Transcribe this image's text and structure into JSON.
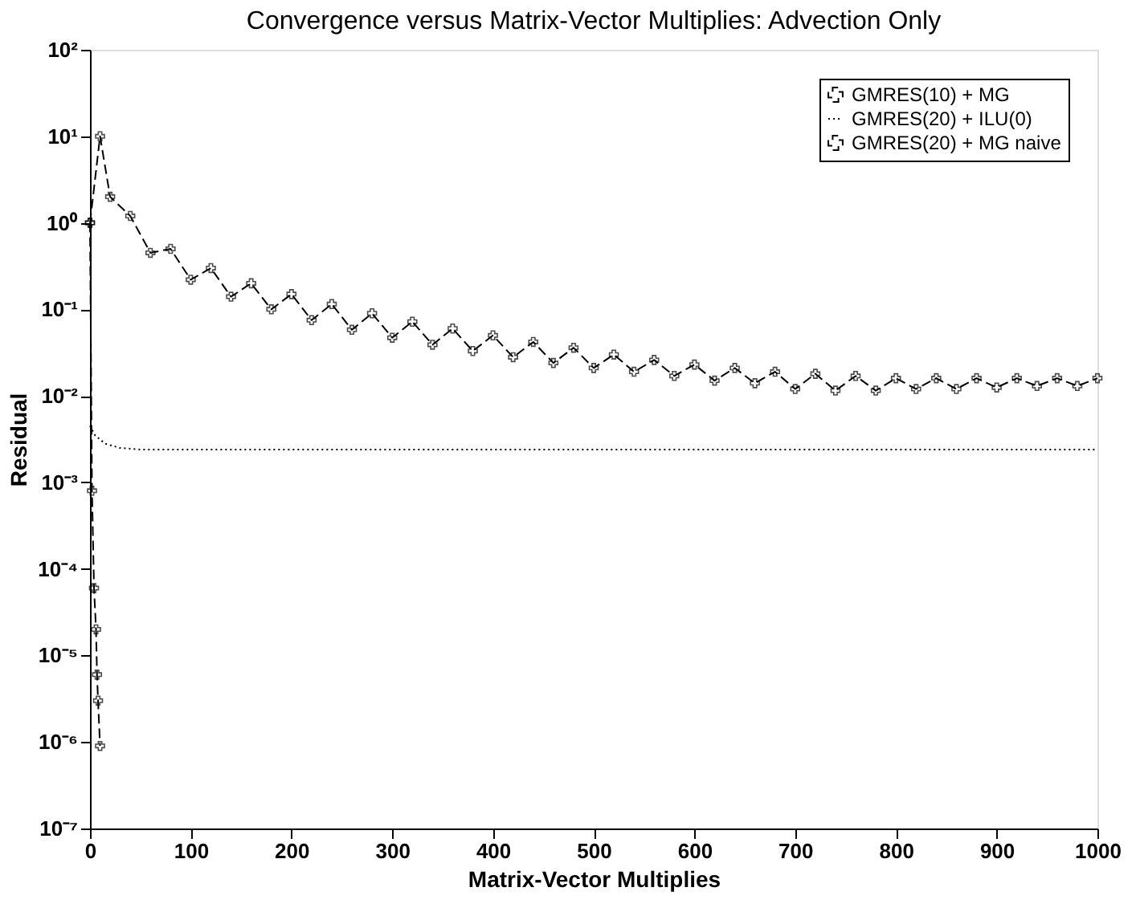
{
  "chart_data": {
    "type": "line",
    "title": "Convergence versus Matrix-Vector Multiplies: Advection Only",
    "xlabel": "Matrix-Vector Multiplies",
    "ylabel": "Residual",
    "xlim": [
      0,
      1000
    ],
    "xticks": [
      0,
      100,
      200,
      300,
      400,
      500,
      600,
      700,
      800,
      900,
      1000
    ],
    "ylim": [
      1e-07,
      100
    ],
    "log": "y",
    "yticks": [
      {
        "value": 1e-07,
        "label": "10⁻⁷"
      },
      {
        "value": 1e-06,
        "label": "10⁻⁶"
      },
      {
        "value": 1e-05,
        "label": "10⁻⁵"
      },
      {
        "value": 0.0001,
        "label": "10⁻⁴"
      },
      {
        "value": 0.001,
        "label": "10⁻³"
      },
      {
        "value": 0.01,
        "label": "10⁻²"
      },
      {
        "value": 0.1,
        "label": "10⁻¹"
      },
      {
        "value": 1,
        "label": "10⁰"
      },
      {
        "value": 10,
        "label": "10¹"
      },
      {
        "value": 100,
        "label": "10²"
      }
    ],
    "grid": false,
    "legend": "top right",
    "series": [
      {
        "name": "GMRES(10) + MG",
        "color": "#000000",
        "marker": "cross",
        "line_style": "dashed",
        "x": [
          0,
          10,
          20,
          40,
          60,
          80,
          100,
          120,
          140,
          160,
          180,
          200,
          220,
          240,
          260,
          280,
          300,
          320,
          340,
          360,
          380,
          400,
          420,
          440,
          460,
          480,
          500,
          520,
          540,
          560,
          580,
          600,
          620,
          640,
          660,
          680,
          700,
          720,
          740,
          760,
          780,
          800,
          820,
          840,
          860,
          880,
          900,
          920,
          940,
          960,
          980,
          1000
        ],
        "values": [
          1,
          10,
          2,
          1.2,
          0.45,
          0.5,
          0.22,
          0.3,
          0.14,
          0.2,
          0.1,
          0.15,
          0.075,
          0.115,
          0.058,
          0.09,
          0.047,
          0.072,
          0.039,
          0.06,
          0.033,
          0.05,
          0.028,
          0.042,
          0.024,
          0.036,
          0.021,
          0.03,
          0.019,
          0.026,
          0.017,
          0.023,
          0.015,
          0.021,
          0.014,
          0.019,
          0.012,
          0.018,
          0.0115,
          0.017,
          0.0115,
          0.016,
          0.012,
          0.016,
          0.012,
          0.016,
          0.0125,
          0.016,
          0.013,
          0.016,
          0.013,
          0.016
        ]
      },
      {
        "name": "GMRES(20) + ILU(0)",
        "color": "#000000",
        "marker": "none",
        "line_style": "dotted",
        "x": [
          0,
          5,
          15,
          30,
          50,
          1000
        ],
        "values": [
          0.0045,
          0.0035,
          0.0028,
          0.0025,
          0.0024,
          0.0024
        ]
      },
      {
        "name": "GMRES(20) + MG naive",
        "color": "#000000",
        "marker": "cross",
        "line_style": "dashed",
        "x": [
          0,
          2,
          4,
          6,
          7,
          8,
          10
        ],
        "values": [
          1,
          0.0008,
          6e-05,
          2e-05,
          6e-06,
          3e-06,
          9e-07
        ]
      }
    ]
  }
}
